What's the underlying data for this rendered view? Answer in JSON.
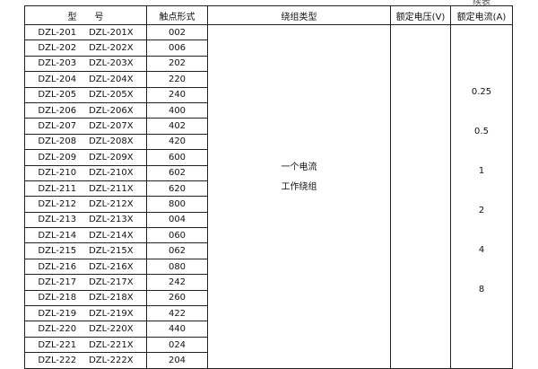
{
  "continued_label": "续表",
  "headers": [
    "型　　号",
    "触点形式",
    "绕组类型",
    "额定电压(V)",
    "额定电流(A)"
  ],
  "rows": [
    [
      "DZL-201",
      "DZL-201X",
      "002"
    ],
    [
      "DZL-202",
      "DZL-202X",
      "006"
    ],
    [
      "DZL-203",
      "DZL-203X",
      "202"
    ],
    [
      "DZL-204",
      "DZL-204X",
      "220"
    ],
    [
      "DZL-205",
      "DZL-205X",
      "240"
    ],
    [
      "DZL-206",
      "DZL-206X",
      "400"
    ],
    [
      "DZL-207",
      "DZL-207X",
      "402"
    ],
    [
      "DZL-208",
      "DZL-208X",
      "420"
    ],
    [
      "DZL-209",
      "DZL-209X",
      "600"
    ],
    [
      "DZL-210",
      "DZL-210X",
      "602"
    ],
    [
      "DZL-211",
      "DZL-211X",
      "620"
    ],
    [
      "DZL-212",
      "DZL-212X",
      "800"
    ],
    [
      "DZL-213",
      "DZL-213X",
      "004"
    ],
    [
      "DZL-214",
      "DZL-214X",
      "060"
    ],
    [
      "DZL-215",
      "DZL-215X",
      "062"
    ],
    [
      "DZL-216",
      "DZL-216X",
      "080"
    ],
    [
      "DZL-217",
      "DZL-217X",
      "242"
    ],
    [
      "DZL-218",
      "DZL-218X",
      "260"
    ],
    [
      "DZL-219",
      "DZL-219X",
      "422"
    ],
    [
      "DZL-220",
      "DZL-220X",
      "440"
    ],
    [
      "DZL-221",
      "DZL-221X",
      "024"
    ],
    [
      "DZL-222",
      "DZL-222X",
      "204"
    ]
  ],
  "winding_type": [
    "一个电流",
    "工作绕组"
  ],
  "rated_currents": [
    "0.25",
    "0.5",
    "1",
    "2",
    "4",
    "8"
  ]
}
